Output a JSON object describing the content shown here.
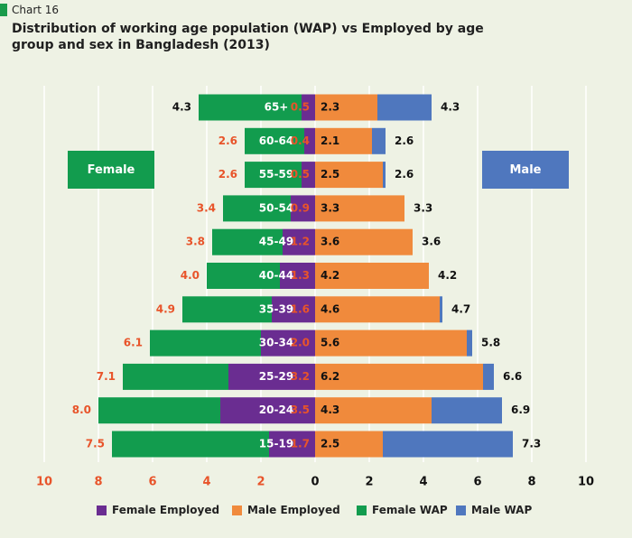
{
  "header": {
    "chart_number": "Chart 16",
    "title": "Distribution of working age population (WAP) vs  Employed by age group and sex in Bangladesh (2013)"
  },
  "side_labels": {
    "left": "Female",
    "right": "Male"
  },
  "colors": {
    "female_wap": "#129c4e",
    "female_employed": "#6a2d91",
    "male_employed": "#f08a3c",
    "male_wap": "#4f77be",
    "female_wap_label": "#e8542a",
    "male_wap_label": "#111111",
    "axis_label": "#e8542a"
  },
  "chart_data": {
    "type": "bar",
    "orientation": "horizontal-pyramid",
    "categories": [
      "15-19",
      "20-24",
      "25-29",
      "30-34",
      "35-39",
      "40-44",
      "45-49",
      "50-54",
      "55-59",
      "60-64",
      "65+"
    ],
    "series": [
      {
        "name": "Female Employed",
        "side": "left",
        "values": [
          1.7,
          3.5,
          3.2,
          2.0,
          1.6,
          1.3,
          1.2,
          0.9,
          0.5,
          0.4,
          0.5
        ]
      },
      {
        "name": "Male Employed",
        "side": "right",
        "values": [
          2.5,
          4.3,
          6.2,
          5.6,
          4.6,
          4.2,
          3.6,
          3.3,
          2.5,
          2.1,
          2.3
        ]
      },
      {
        "name": "Female WAP",
        "side": "left",
        "values": [
          7.5,
          8.0,
          7.1,
          6.1,
          4.9,
          4.0,
          3.8,
          3.4,
          2.6,
          2.6,
          4.3
        ]
      },
      {
        "name": "Male WAP",
        "side": "right",
        "values": [
          7.3,
          6.9,
          6.6,
          5.8,
          4.7,
          4.2,
          3.6,
          3.3,
          2.6,
          2.6,
          4.3
        ]
      }
    ],
    "xlim": [
      -10,
      10
    ],
    "x_ticks": [
      "10",
      "8",
      "6",
      "4",
      "2",
      "0",
      "2",
      "4",
      "6",
      "8",
      "10"
    ],
    "legend": {
      "position": "bottom",
      "entries": [
        "Female Employed",
        "Male Employed",
        "Female WAP",
        "Male WAP"
      ]
    }
  }
}
